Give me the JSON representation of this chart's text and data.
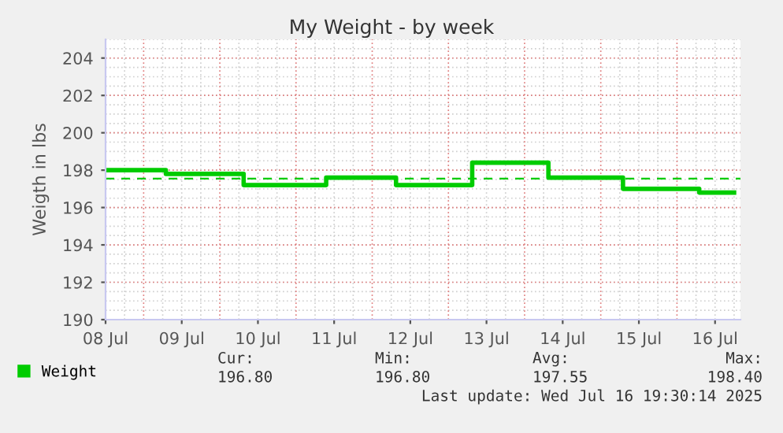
{
  "chart_data": {
    "type": "step",
    "title": "My Weight - by week",
    "ylabel": "Weigth in lbs",
    "x": [
      "2025-07-08T12:00",
      "2025-07-09T07:00",
      "2025-07-10T07:30",
      "2025-07-11T09:30",
      "2025-07-12T07:30",
      "2025-07-13T07:30",
      "2025-07-14T07:30",
      "2025-07-15T07:00",
      "2025-07-16T07:00",
      "2025-07-16T18:00"
    ],
    "series": [
      {
        "name": "Weight",
        "color": "#00cc00",
        "values": [
          198.0,
          197.8,
          197.2,
          197.6,
          197.2,
          198.4,
          197.6,
          197.0,
          196.8,
          196.8
        ]
      }
    ],
    "xlim": [
      "2025-07-08T12:00",
      "2025-07-16T20:00"
    ],
    "xticks": [
      {
        "value": "2025-07-08T12:00",
        "label": "08 Jul"
      },
      {
        "value": "2025-07-09T12:00",
        "label": "09 Jul"
      },
      {
        "value": "2025-07-10T12:00",
        "label": "10 Jul"
      },
      {
        "value": "2025-07-11T12:00",
        "label": "11 Jul"
      },
      {
        "value": "2025-07-12T12:00",
        "label": "12 Jul"
      },
      {
        "value": "2025-07-13T12:00",
        "label": "13 Jul"
      },
      {
        "value": "2025-07-14T12:00",
        "label": "14 Jul"
      },
      {
        "value": "2025-07-15T12:00",
        "label": "15 Jul"
      },
      {
        "value": "2025-07-16T12:00",
        "label": "16 Jul"
      }
    ],
    "ylim": [
      190,
      205
    ],
    "yticks": [
      190,
      192,
      194,
      196,
      198,
      200,
      202,
      204
    ],
    "ref_lines": [
      {
        "axis": "y",
        "value": 197.55,
        "color": "#00cc00",
        "line_style": "dashed"
      }
    ],
    "grid": true,
    "legend": "bottom left",
    "annotations": [
      "Cur:",
      "196.80",
      "Min:",
      "196.80",
      "Avg:",
      "197.55",
      "Max:",
      "198.40",
      "Last update: Wed Jul 16 19:30:14 2025"
    ]
  }
}
